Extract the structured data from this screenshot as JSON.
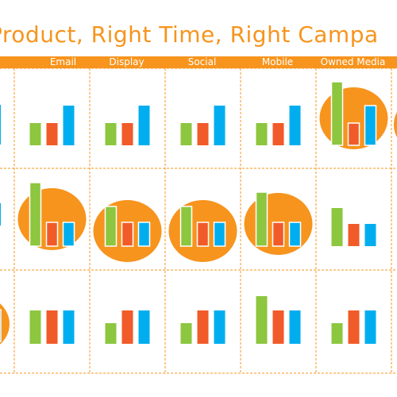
{
  "title": "Product, Right Time, Right Campa",
  "columns": [
    "Email",
    "Display",
    "Social",
    "Mobile",
    "Owned Media"
  ],
  "colors": {
    "accent": "#f7941d",
    "series": [
      "#8dc63f",
      "#f15a29",
      "#00aeef"
    ]
  },
  "chart_data": {
    "type": "bar",
    "grid_rows": 3,
    "grid_columns": [
      "Email",
      "Display",
      "Social",
      "Mobile",
      "Owned Media"
    ],
    "cells": [
      [
        {
          "values": [
            28,
            28,
            50
          ],
          "highlight": false
        },
        {
          "values": [
            28,
            28,
            50
          ],
          "highlight": false
        },
        {
          "values": [
            28,
            28,
            50
          ],
          "highlight": false
        },
        {
          "values": [
            28,
            28,
            50
          ],
          "highlight": false
        },
        {
          "values": [
            80,
            28,
            50
          ],
          "highlight": true
        }
      ],
      [
        {
          "values": [
            80,
            30,
            30
          ],
          "highlight": true
        },
        {
          "values": [
            50,
            30,
            30
          ],
          "highlight": true
        },
        {
          "values": [
            50,
            30,
            30
          ],
          "highlight": true
        },
        {
          "values": [
            68,
            30,
            30
          ],
          "highlight": true
        },
        {
          "values": [
            48,
            28,
            28
          ],
          "highlight": false
        }
      ],
      [
        {
          "values": [
            42,
            42,
            42
          ],
          "highlight": false
        },
        {
          "values": [
            26,
            42,
            42
          ],
          "highlight": false
        },
        {
          "values": [
            26,
            42,
            42
          ],
          "highlight": false
        },
        {
          "values": [
            60,
            42,
            42
          ],
          "highlight": false
        },
        {
          "values": [
            26,
            42,
            42
          ],
          "highlight": false
        }
      ]
    ]
  }
}
